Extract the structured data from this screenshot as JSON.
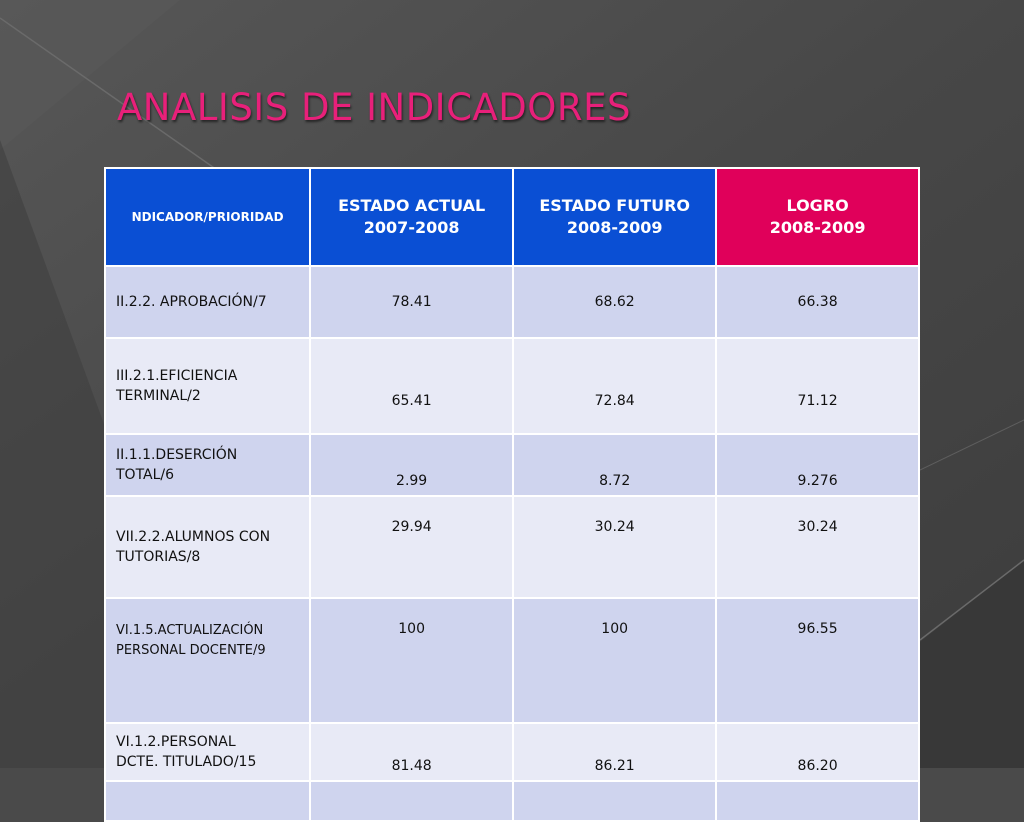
{
  "slide": {
    "title": "ANALISIS DE INDICADORES",
    "colors": {
      "title": "#e8207a",
      "header_blue": "#0a4fd4",
      "header_pink": "#e0005a",
      "row_dark": "#cfd4ee",
      "row_light": "#e8eaf6",
      "background": "#4a4a4a"
    }
  },
  "table": {
    "headers": {
      "indicator": "NDICADOR/PRIORIDAD",
      "actual_l1": "ESTADO ACTUAL",
      "actual_l2": "2007-2008",
      "futuro_l1": "ESTADO FUTURO",
      "futuro_l2": "2008-2009",
      "logro_l1": "LOGRO",
      "logro_l2": "2008-2009"
    },
    "rows": [
      {
        "indicator": "II.2.2. APROBACIÓN/7",
        "actual": "78.41",
        "futuro": "68.62",
        "logro": "66.38"
      },
      {
        "indicator_l1": "III.2.1.EFICIENCIA",
        "indicator_l2": "TERMINAL/2",
        "actual": "65.41",
        "futuro": "72.84",
        "logro": "71.12"
      },
      {
        "indicator_l1": "II.1.1.DESERCIÓN",
        "indicator_l2": "TOTAL/6",
        "actual": "2.99",
        "futuro": "8.72",
        "logro": "9.276"
      },
      {
        "indicator_l1": "VII.2.2.ALUMNOS CON",
        "indicator_l2": "TUTORIAS/8",
        "actual": "29.94",
        "futuro": "30.24",
        "logro": "30.24"
      },
      {
        "indicator_l1": "VI.1.5.ACTUALIZACIÓN",
        "indicator_l2": "PERSONAL DOCENTE/9",
        "actual": "100",
        "futuro": "100",
        "logro": "96.55"
      },
      {
        "indicator_l1": "VI.1.2.PERSONAL",
        "indicator_l2": "DCTE. TITULADO/15",
        "actual": "81.48",
        "futuro": "86.21",
        "logro": "86.20"
      }
    ]
  }
}
